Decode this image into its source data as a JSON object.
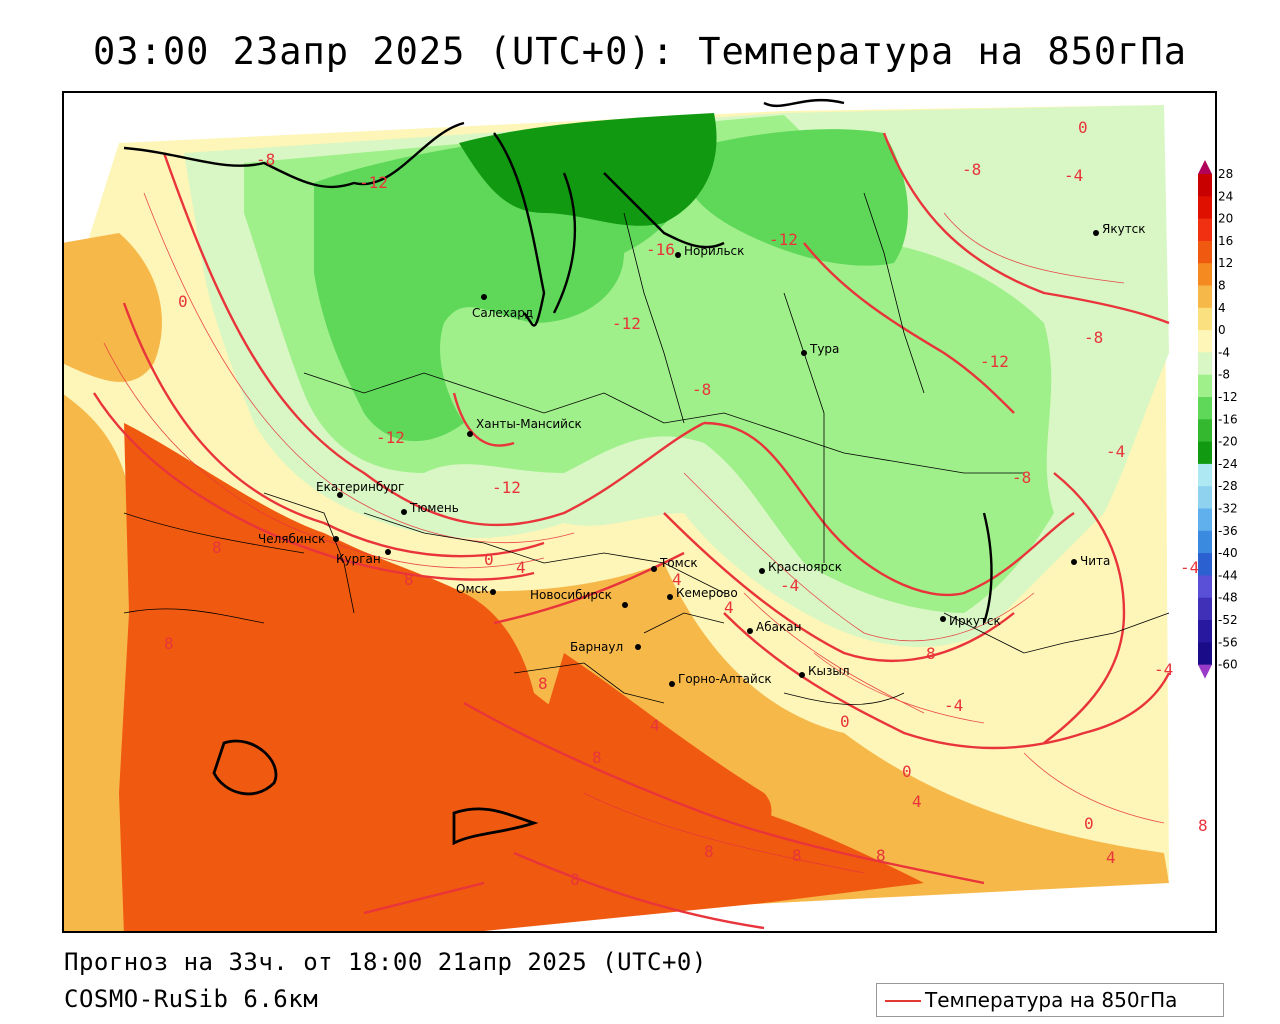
{
  "title": "03:00 23апр 2025 (UTC+0): Температура на 850гПа",
  "forecast_line": "Прогноз на 33ч. от 18:00 21апр 2025 (UTC+0)",
  "model_line": "COSMO-RuSib 6.6км",
  "legend": {
    "label": "Температура на 850гПа",
    "line_color": "#e23a30"
  },
  "colorbar": {
    "ticks": [
      28,
      24,
      20,
      16,
      12,
      8,
      4,
      0,
      -4,
      -8,
      -12,
      -16,
      -20,
      -24,
      -28,
      -32,
      -36,
      -40,
      -44,
      -48,
      -52,
      -56,
      -60
    ],
    "colors": [
      "#b0005a",
      "#c80000",
      "#e01000",
      "#f03010",
      "#f05a10",
      "#f58a20",
      "#f7b84a",
      "#fbe080",
      "#fdf6b8",
      "#d8f7c4",
      "#9ff08a",
      "#5fd85a",
      "#34b82f",
      "#129912",
      "#aee8f2",
      "#8fd2f0",
      "#5fb0ec",
      "#3a8ae0",
      "#2a60d0",
      "#5a50d8",
      "#4030b8",
      "#2818a0",
      "#1a0c88",
      "#9a3ac8"
    ]
  },
  "cities": [
    {
      "name": "Салехард",
      "label": "Салехард"
    },
    {
      "name": "Норильск",
      "label": "Норильск"
    },
    {
      "name": "Якутск",
      "label": "Якутск"
    },
    {
      "name": "Тура",
      "label": "Тура"
    },
    {
      "name": "Ханты-Мансийск",
      "label": "Ханты-Мансийск"
    },
    {
      "name": "Екатеринбург",
      "label": "Екатеринбург"
    },
    {
      "name": "Тюмень",
      "label": "Тюмень"
    },
    {
      "name": "Челябинск",
      "label": "Челябинск"
    },
    {
      "name": "Курган",
      "label": "Курган"
    },
    {
      "name": "Омск",
      "label": "Омск"
    },
    {
      "name": "Новосибирск",
      "label": "Новосибирск"
    },
    {
      "name": "Томск",
      "label": "Томск"
    },
    {
      "name": "Кемерово",
      "label": "Кемерово"
    },
    {
      "name": "Красноярск",
      "label": "Красноярск"
    },
    {
      "name": "Абакан",
      "label": "Абакан"
    },
    {
      "name": "Барнаул",
      "label": "Барнаул"
    },
    {
      "name": "Горно-Алтайск",
      "label": "Горно-Алтайск"
    },
    {
      "name": "Кызыл",
      "label": "Кызыл"
    },
    {
      "name": "Иркутск",
      "label": "Иркутск"
    },
    {
      "name": "Чита",
      "label": "Чита"
    }
  ],
  "isoline_labels": [
    "-8",
    "-12",
    "-16",
    "-12",
    "-8",
    "-4",
    "0",
    "-12",
    "0",
    "-12",
    "-8",
    "-12",
    "-12",
    "-8",
    "-4",
    "-8",
    "-4",
    "-4",
    "4",
    "8",
    "8",
    "0",
    "4",
    "4",
    "-4",
    "8",
    "-4",
    "0",
    "8",
    "8",
    "4",
    "0",
    "4",
    "8",
    "8",
    "8",
    "8",
    "0",
    "4",
    "8",
    "8"
  ]
}
